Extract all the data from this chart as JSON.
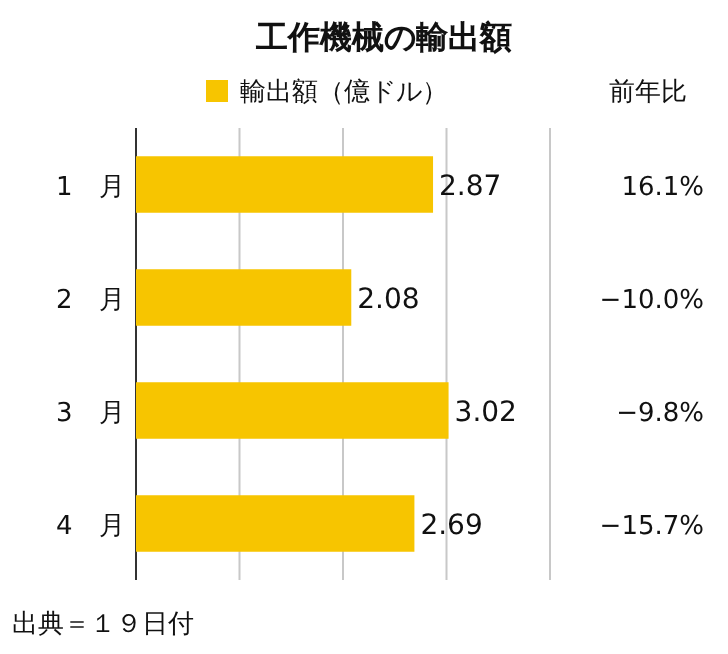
{
  "chart_data": {
    "type": "bar",
    "orientation": "horizontal",
    "title": "工作機械の輸出額",
    "categories": [
      "1　月",
      "2　月",
      "3　月",
      "4　月"
    ],
    "series": [
      {
        "name": "輸出額（億ドル）",
        "color": "#f7c500",
        "values": [
          2.87,
          2.08,
          3.02,
          2.69
        ]
      }
    ],
    "xlim": [
      0,
      4
    ],
    "xticks": [
      {
        "value": 0,
        "label": null
      },
      {
        "value": 1,
        "label": null
      },
      {
        "value": 2,
        "label": null
      },
      {
        "value": 3,
        "label": null
      },
      {
        "value": 4,
        "label": null
      }
    ],
    "grid": "x",
    "legend": "top",
    "data_labels": true,
    "annotations": [
      "前年比",
      "16.1%",
      "−10.0%",
      "−9.8%",
      "−15.7%",
      "出典＝１９日付"
    ]
  }
}
